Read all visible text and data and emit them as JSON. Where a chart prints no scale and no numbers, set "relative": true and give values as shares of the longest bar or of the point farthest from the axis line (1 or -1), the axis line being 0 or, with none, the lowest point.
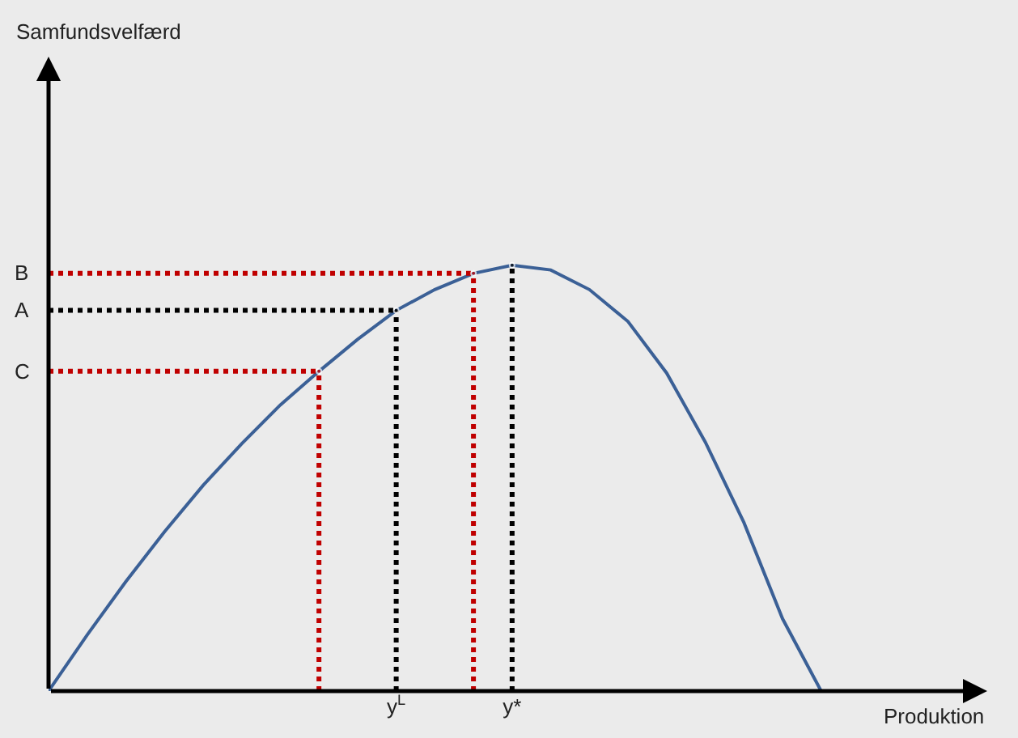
{
  "chart_data": {
    "type": "line",
    "relative": true,
    "xlabel": "Produktion",
    "categories": [
      null,
      null,
      null,
      null,
      null,
      null,
      null,
      null,
      null,
      "y$^{L}$",
      null,
      null,
      "y*",
      null,
      null,
      null,
      null,
      null,
      null,
      null,
      null
    ],
    "grid": false,
    "marker": "none",
    "series": [
      {
        "color": "#3b6096",
        "line_style": "solid",
        "values": [
          0,
          0.132,
          0.257,
          0.374,
          0.483,
          0.581,
          0.672,
          0.751,
          0.826,
          0.894,
          0.943,
          0.981,
          1,
          0.989,
          0.943,
          0.868,
          0.747,
          0.585,
          0.396,
          0.17,
          0
        ]
      },
      {
        "color": "#c00000",
        "line_style": "dotted",
        "values": [
          0.981,
          0.981,
          0.981,
          0.981,
          0.981,
          0.981,
          0.981,
          0.981,
          0.981,
          0.981,
          0.981,
          0.981,
          null,
          null,
          null,
          null,
          null,
          null,
          null,
          null,
          null
        ]
      },
      {
        "color": "#000000",
        "line_style": "dotted",
        "values": [
          0.894,
          0.894,
          0.894,
          0.894,
          0.894,
          0.894,
          0.894,
          0.894,
          0.894,
          0.894,
          null,
          null,
          null,
          null,
          null,
          null,
          null,
          null,
          null,
          null,
          null
        ]
      },
      {
        "color": "#c00000",
        "line_style": "dotted",
        "values": [
          0.751,
          0.751,
          0.751,
          0.751,
          0.751,
          0.751,
          0.751,
          0.751,
          null,
          null,
          null,
          null,
          null,
          null,
          null,
          null,
          null,
          null,
          null,
          null,
          null
        ]
      },
      {
        "type": "lollipop",
        "line_style": "dotted",
        "colors": [
          null,
          null,
          null,
          null,
          null,
          null,
          null,
          "#c00000",
          null,
          "#000000",
          null,
          "#c00000",
          "#000000",
          null,
          null,
          null,
          null,
          null,
          null,
          null,
          null
        ],
        "values": [
          null,
          null,
          null,
          null,
          null,
          null,
          null,
          0.751,
          null,
          0.894,
          null,
          0.981,
          1,
          null,
          null,
          null,
          null,
          null,
          null,
          null,
          null
        ]
      }
    ],
    "annotations": [
      "B",
      "A",
      "C",
      "Samfundsvelfærd"
    ]
  }
}
